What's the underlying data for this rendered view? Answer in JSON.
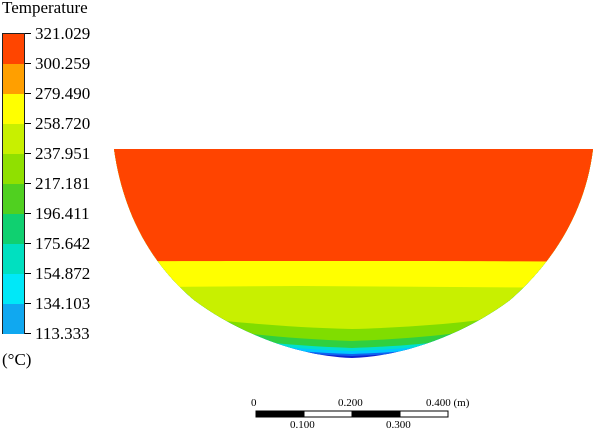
{
  "legend": {
    "title": "Temperature",
    "unit": "(°C)",
    "values": [
      "321.029",
      "300.259",
      "279.490",
      "258.720",
      "237.951",
      "217.181",
      "196.411",
      "175.642",
      "154.872",
      "134.103",
      "113.333"
    ],
    "colors": [
      "#ff4500",
      "#ff9f00",
      "#ffff00",
      "#c8f000",
      "#90e000",
      "#50d020",
      "#10d070",
      "#00e0c0",
      "#00e8f8",
      "#10a8f0",
      "#1040f0"
    ]
  },
  "contour": {
    "band_colors": {
      "hot": "#ff4400",
      "orange": "#ffa000",
      "yellow": "#ffff00",
      "yellow_green": "#c8f000",
      "green": "#80dd00",
      "bright_green": "#30d040",
      "cyan": "#00e0d0",
      "light_blue": "#00c8ff",
      "blue": "#1060f0",
      "dark_blue": "#1020d0"
    }
  },
  "scale_bar": {
    "top_labels": [
      "0",
      "0.200",
      "0.400 (m)"
    ],
    "bottom_labels": [
      "0.100",
      "0.300"
    ]
  }
}
